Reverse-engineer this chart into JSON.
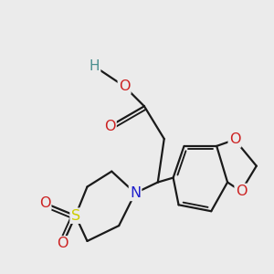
{
  "background_color": "#ebebeb",
  "bond_color": "#1a1a1a",
  "bond_width": 1.6,
  "atom_colors": {
    "H": "#4a8f8f",
    "O": "#cc2020",
    "N": "#2020cc",
    "S": "#cccc00",
    "C": "#1a1a1a"
  }
}
